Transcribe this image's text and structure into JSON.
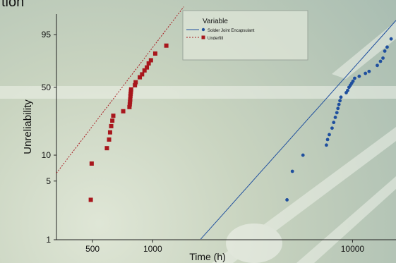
{
  "header": {
    "fragment": "tion"
  },
  "chart_data": {
    "type": "scatter",
    "xlabel": "Time (h)",
    "ylabel": "Unreliability",
    "x_scale": "log",
    "y_scale": "weibull",
    "xlim": [
      330,
      16500
    ],
    "ylim": [
      1,
      99.5
    ],
    "x_ticks": [
      500,
      1000,
      10000
    ],
    "x_tick_labels": [
      "500",
      "1000",
      "10000"
    ],
    "y_ticks": [
      1,
      5,
      10,
      50,
      95
    ],
    "y_tick_labels": [
      "1",
      "5",
      "10",
      "50",
      "95"
    ],
    "grid": false,
    "legend": {
      "title": "Variable",
      "position": "top-center"
    },
    "series": [
      {
        "name": "Solder Joint Encapsulant",
        "color": "#1f4f9e",
        "marker": "circle",
        "line": "solid",
        "fit": {
          "eta": 9500,
          "beta": 2.7
        },
        "points": [
          {
            "x": 4700,
            "y": 3
          },
          {
            "x": 5000,
            "y": 6.5
          },
          {
            "x": 5650,
            "y": 10
          },
          {
            "x": 7400,
            "y": 13
          },
          {
            "x": 7500,
            "y": 15
          },
          {
            "x": 7650,
            "y": 17
          },
          {
            "x": 7900,
            "y": 20
          },
          {
            "x": 8050,
            "y": 23
          },
          {
            "x": 8200,
            "y": 26
          },
          {
            "x": 8350,
            "y": 29
          },
          {
            "x": 8450,
            "y": 32
          },
          {
            "x": 8550,
            "y": 35
          },
          {
            "x": 8650,
            "y": 38
          },
          {
            "x": 8750,
            "y": 41
          },
          {
            "x": 9300,
            "y": 45
          },
          {
            "x": 9450,
            "y": 47
          },
          {
            "x": 9600,
            "y": 50
          },
          {
            "x": 9750,
            "y": 52
          },
          {
            "x": 9900,
            "y": 54
          },
          {
            "x": 10050,
            "y": 56
          },
          {
            "x": 10250,
            "y": 59
          },
          {
            "x": 10800,
            "y": 61
          },
          {
            "x": 11600,
            "y": 64
          },
          {
            "x": 12100,
            "y": 66
          },
          {
            "x": 13300,
            "y": 72
          },
          {
            "x": 13800,
            "y": 76
          },
          {
            "x": 14200,
            "y": 79
          },
          {
            "x": 14500,
            "y": 85
          },
          {
            "x": 14900,
            "y": 88
          },
          {
            "x": 15600,
            "y": 93
          }
        ]
      },
      {
        "name": "Underfill",
        "color": "#a8171d",
        "marker": "square",
        "line": "dashed",
        "fit": {
          "eta": 790,
          "beta": 3.15
        },
        "points": [
          {
            "x": 490,
            "y": 3
          },
          {
            "x": 495,
            "y": 8
          },
          {
            "x": 590,
            "y": 12
          },
          {
            "x": 605,
            "y": 15
          },
          {
            "x": 612,
            "y": 18
          },
          {
            "x": 620,
            "y": 21
          },
          {
            "x": 628,
            "y": 24
          },
          {
            "x": 635,
            "y": 27
          },
          {
            "x": 712,
            "y": 30
          },
          {
            "x": 765,
            "y": 33
          },
          {
            "x": 768,
            "y": 35
          },
          {
            "x": 770,
            "y": 37
          },
          {
            "x": 772,
            "y": 39
          },
          {
            "x": 774,
            "y": 42
          },
          {
            "x": 776,
            "y": 44
          },
          {
            "x": 778,
            "y": 46
          },
          {
            "x": 780,
            "y": 48
          },
          {
            "x": 815,
            "y": 52
          },
          {
            "x": 822,
            "y": 55
          },
          {
            "x": 862,
            "y": 60
          },
          {
            "x": 885,
            "y": 63
          },
          {
            "x": 910,
            "y": 67
          },
          {
            "x": 935,
            "y": 70
          },
          {
            "x": 955,
            "y": 74
          },
          {
            "x": 980,
            "y": 77
          },
          {
            "x": 1030,
            "y": 83
          },
          {
            "x": 1170,
            "y": 89
          }
        ]
      }
    ]
  }
}
